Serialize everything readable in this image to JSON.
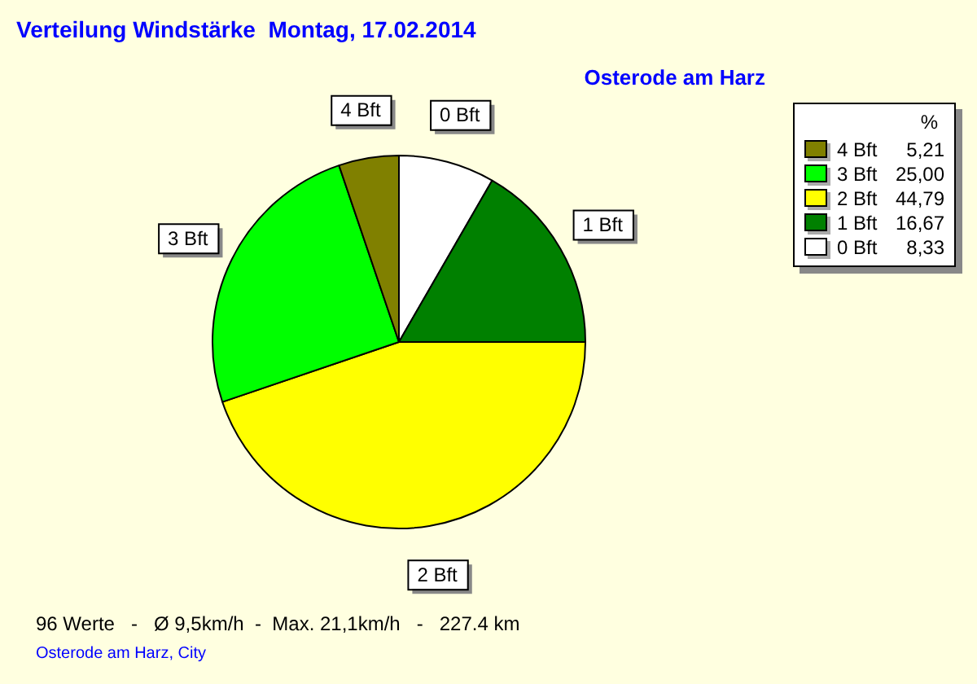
{
  "chart_data": {
    "type": "pie",
    "title": "Verteilung Windstärke  Montag, 17.02.2014",
    "subtitle": "Osterode am Harz",
    "categories": [
      "0 Bft",
      "1 Bft",
      "2 Bft",
      "3 Bft",
      "4 Bft"
    ],
    "values": [
      8.33,
      16.67,
      44.79,
      25.0,
      5.21
    ],
    "value_labels": [
      "8,33",
      "16,67",
      "44,79",
      "25,00",
      "5,21"
    ],
    "colors": [
      "#ffffff",
      "#008000",
      "#ffff00",
      "#00ff00",
      "#808000"
    ],
    "legend": "top right",
    "legend_title": "%",
    "annotations": [
      "96 Werte   -   Ø 9,5km/h  -  Max. 21,1km/h   -   227.4 km",
      "Osterode am Harz, City"
    ]
  }
}
